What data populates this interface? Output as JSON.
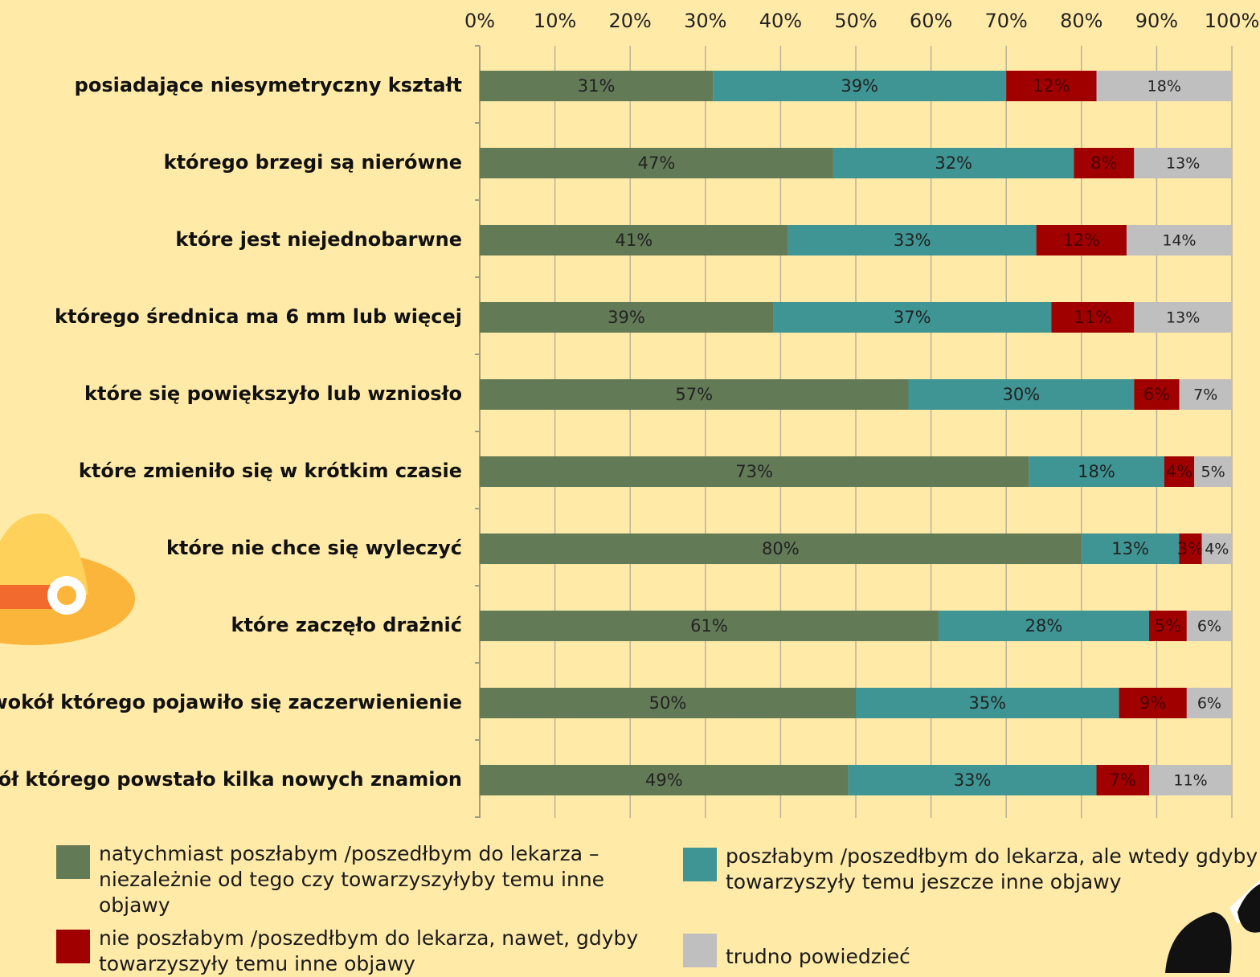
{
  "chart_data": {
    "type": "stacked_barh",
    "categories": [
      "posiadające niesymetryczny kształt",
      "którego brzegi są nierówne",
      "które jest niejednobarwne",
      "którego średnica ma 6 mm lub więcej",
      "które się powiększyło lub wzniosło",
      "które zmieniło się w krótkim czasie",
      "które nie chce się wyleczyć",
      "które zaczęło drażnić",
      "wokół którego pojawiło się zaczerwienienie",
      "wokół którego powstało kilka nowych znamion"
    ],
    "series": [
      {
        "name": "natychmiast poszłabym /poszedłbym do lekarza – niezależnie od tego czy towarzyszyłyby temu inne objawy",
        "color": "#637a57",
        "values": [
          31,
          47,
          41,
          39,
          57,
          73,
          80,
          61,
          50,
          49
        ],
        "value_labels": [
          "31%",
          "47%",
          "41%",
          "39%",
          "57%",
          "73%",
          "80%",
          "61%",
          "50%",
          "49%"
        ]
      },
      {
        "name": "poszłabym /poszedłbym do lekarza, ale wtedy gdyby towarzyszyły temu jeszcze inne objawy",
        "color": "#3f9494",
        "values": [
          39,
          32,
          33,
          37,
          30,
          18,
          13,
          28,
          35,
          33
        ],
        "value_labels": [
          "39%",
          "32%",
          "33%",
          "37%",
          "30%",
          "18%",
          "13%",
          "28%",
          "35%",
          "33%"
        ]
      },
      {
        "name": "nie poszłabym /poszedłbym do lekarza, nawet, gdyby towarzyszyły temu inne objawy",
        "color": "#a00000",
        "values": [
          12,
          8,
          12,
          11,
          6,
          4,
          3,
          5,
          9,
          7
        ],
        "value_labels": [
          "12%",
          "8%",
          "12%",
          "11%",
          "6%",
          "4%",
          "3%",
          "5%",
          "9%",
          "7%"
        ]
      },
      {
        "name": "trudno powiedzieć",
        "color": "#bfbfbf",
        "values": [
          18,
          13,
          14,
          13,
          7,
          5,
          4,
          6,
          6,
          11
        ],
        "value_labels": [
          "18%",
          "13%",
          "14%",
          "13%",
          "7%",
          "5%",
          "4%",
          "6%",
          "6%",
          "11%"
        ]
      }
    ],
    "xlim": [
      0,
      100
    ],
    "xticks": [
      {
        "value": 0,
        "label": "0%"
      },
      {
        "value": 10,
        "label": "10%"
      },
      {
        "value": 20,
        "label": "20%"
      },
      {
        "value": 30,
        "label": "30%"
      },
      {
        "value": 40,
        "label": "40%"
      },
      {
        "value": 50,
        "label": "50%"
      },
      {
        "value": 60,
        "label": "60%"
      },
      {
        "value": 70,
        "label": "70%"
      },
      {
        "value": 80,
        "label": "80%"
      },
      {
        "value": 90,
        "label": "90%"
      },
      {
        "value": 100,
        "label": "100%"
      }
    ],
    "grid": true,
    "legend": "bottom"
  }
}
